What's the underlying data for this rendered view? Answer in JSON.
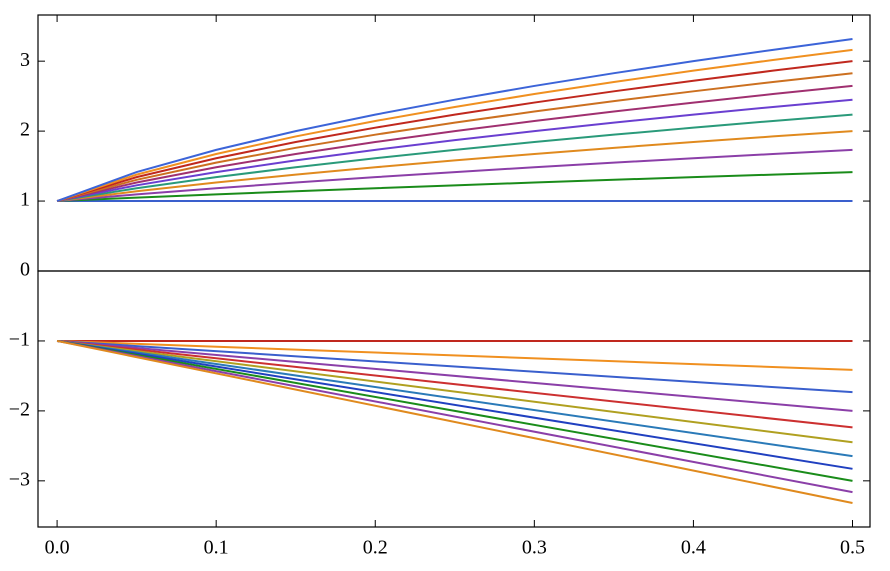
{
  "chart_data": [
    {
      "type": "line",
      "x": [
        0,
        0.05,
        0.1,
        0.15,
        0.2,
        0.25,
        0.3,
        0.35,
        0.4,
        0.45,
        0.5
      ],
      "xlim": [
        -0.012,
        0.511
      ],
      "ylim": [
        0,
        3.66
      ],
      "yticks": [
        0,
        1,
        2,
        3
      ],
      "series": [
        {
          "color": "#3a5fcd",
          "values": [
            1,
            1,
            1,
            1,
            1,
            1,
            1,
            1,
            1,
            1,
            1
          ]
        },
        {
          "color": "#1a8c1a",
          "values": [
            1,
            1.049,
            1.095,
            1.14,
            1.183,
            1.225,
            1.265,
            1.304,
            1.342,
            1.378,
            1.414
          ]
        },
        {
          "color": "#8b3fa8",
          "values": [
            1,
            1.095,
            1.183,
            1.265,
            1.342,
            1.414,
            1.483,
            1.549,
            1.612,
            1.673,
            1.732
          ]
        },
        {
          "color": "#e08a1e",
          "values": [
            1,
            1.14,
            1.265,
            1.378,
            1.483,
            1.581,
            1.673,
            1.761,
            1.844,
            1.924,
            2
          ]
        },
        {
          "color": "#2a9a7a",
          "values": [
            1,
            1.183,
            1.342,
            1.483,
            1.612,
            1.732,
            1.844,
            1.949,
            2.049,
            2.145,
            2.236
          ]
        },
        {
          "color": "#6a3fd0",
          "values": [
            1,
            1.225,
            1.414,
            1.581,
            1.732,
            1.871,
            2,
            2.121,
            2.236,
            2.345,
            2.449
          ]
        },
        {
          "color": "#a03070",
          "values": [
            1,
            1.265,
            1.483,
            1.673,
            1.844,
            2,
            2.145,
            2.28,
            2.408,
            2.53,
            2.646
          ]
        },
        {
          "color": "#cc7020",
          "values": [
            1,
            1.304,
            1.549,
            1.761,
            1.949,
            2.121,
            2.28,
            2.429,
            2.569,
            2.702,
            2.828
          ]
        },
        {
          "color": "#c0281e",
          "values": [
            1,
            1.342,
            1.612,
            1.844,
            2.049,
            2.236,
            2.408,
            2.569,
            2.72,
            2.864,
            3
          ]
        },
        {
          "color": "#f09020",
          "values": [
            1,
            1.378,
            1.673,
            1.924,
            2.145,
            2.345,
            2.53,
            2.702,
            2.864,
            3.017,
            3.162
          ]
        },
        {
          "color": "#3c64d8",
          "values": [
            1,
            1.414,
            1.732,
            2,
            2.236,
            2.449,
            2.646,
            2.828,
            3,
            3.162,
            3.317
          ]
        }
      ]
    },
    {
      "type": "line",
      "x": [
        0,
        0.5
      ],
      "xlim": [
        -0.012,
        0.511
      ],
      "ylim": [
        -3.66,
        0
      ],
      "yticks": [
        {
          "value": -1,
          "label": "−1"
        },
        {
          "value": -2,
          "label": "−2"
        },
        {
          "value": -3,
          "label": "−3"
        }
      ],
      "xticks": [
        {
          "value": 0,
          "label": "0.0"
        },
        0.1,
        0.2,
        0.3,
        0.4,
        0.5
      ],
      "series": [
        {
          "color": "#c0281e",
          "values": [
            -1,
            -1
          ]
        },
        {
          "color": "#f09020",
          "values": [
            -1,
            -1.414
          ]
        },
        {
          "color": "#3a5fcd",
          "values": [
            -1,
            -1.732
          ]
        },
        {
          "color": "#8b3fa8",
          "values": [
            -1,
            -2
          ]
        },
        {
          "color": "#cc3030",
          "values": [
            -1,
            -2.236
          ]
        },
        {
          "color": "#b0a020",
          "values": [
            -1,
            -2.449
          ]
        },
        {
          "color": "#2a7ab8",
          "values": [
            -1,
            -2.646
          ]
        },
        {
          "color": "#2040c0",
          "values": [
            -1,
            -2.828
          ]
        },
        {
          "color": "#1a8c1a",
          "values": [
            -1,
            -3
          ]
        },
        {
          "color": "#8b3fa8",
          "values": [
            -1,
            -3.162
          ]
        },
        {
          "color": "#e08a1e",
          "values": [
            -1,
            -3.317
          ]
        }
      ]
    }
  ]
}
